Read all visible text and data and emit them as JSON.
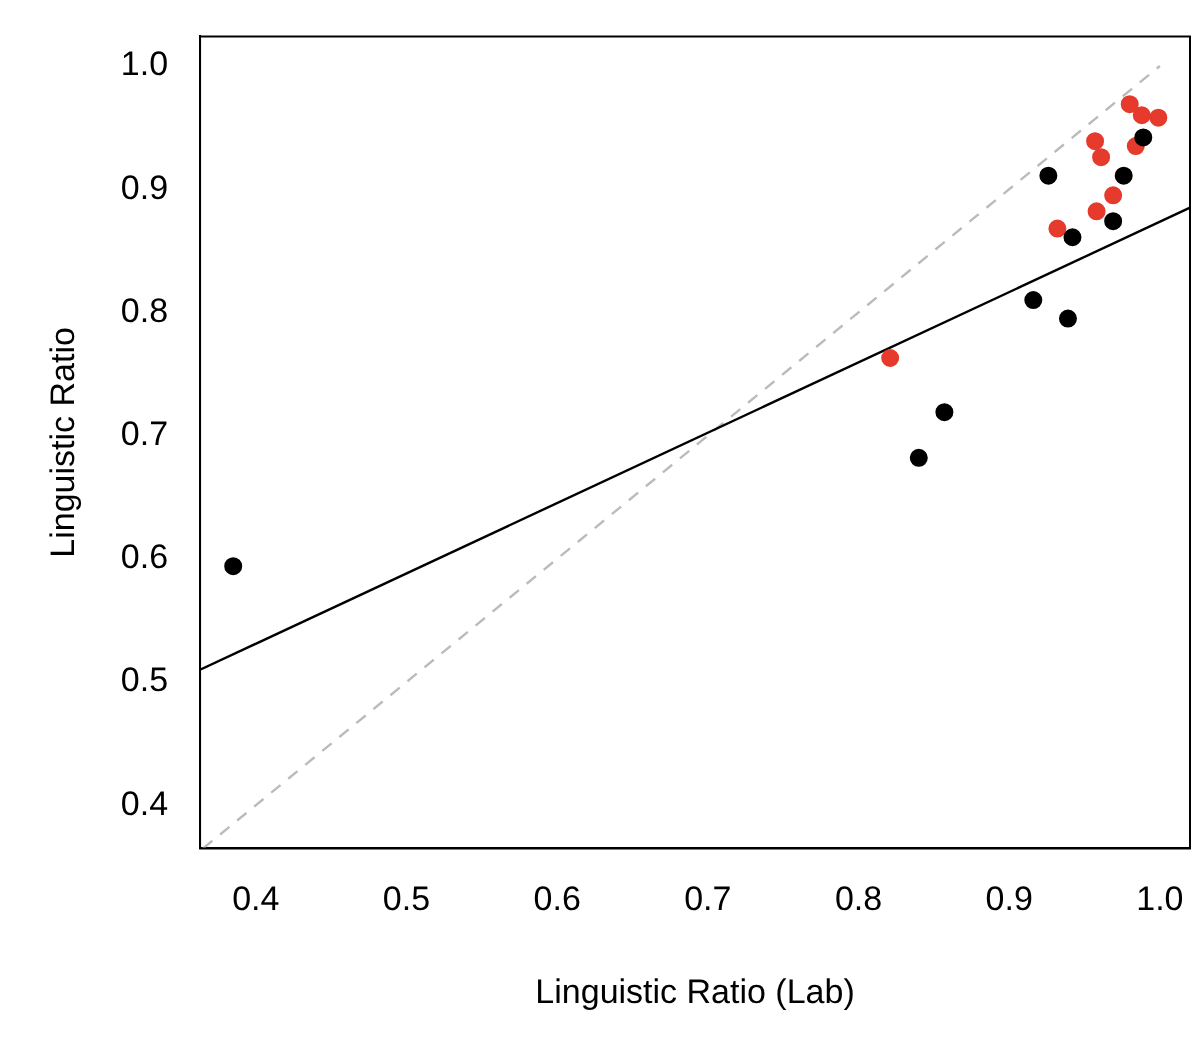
{
  "chart_data": {
    "type": "scatter",
    "xlabel": "Linguistic Ratio (Lab)",
    "ylabel": "Linguistic Ratio",
    "xlim": [
      0.363,
      1.02
    ],
    "ylim": [
      0.365,
      1.024
    ],
    "xticks": [
      0.4,
      0.5,
      0.6,
      0.7,
      0.8,
      0.9,
      {
        "value": 1.0,
        "label": "1.0"
      }
    ],
    "yticks": [
      0.4,
      0.5,
      0.6,
      0.7,
      0.8,
      0.9,
      {
        "value": 1.0,
        "label": "1.0"
      }
    ],
    "grid": false,
    "legend": false,
    "marker": "circle",
    "series": [
      {
        "type": "scatter",
        "color": "#000000",
        "x": [
          0.385,
          0.916,
          0.939,
          0.857,
          0.84,
          0.926,
          0.989,
          0.976,
          0.942,
          0.969
        ],
        "values": [
          0.594,
          0.81,
          0.795,
          0.719,
          0.682,
          0.911,
          0.942,
          0.911,
          0.861,
          0.874
        ]
      },
      {
        "type": "scatter",
        "color": "#e53a2c",
        "x": [
          0.821,
          0.98,
          0.988,
          0.999,
          0.957,
          0.961,
          0.984,
          0.969,
          0.958,
          0.932
        ],
        "values": [
          0.763,
          0.969,
          0.96,
          0.958,
          0.939,
          0.926,
          0.935,
          0.895,
          0.882,
          0.868
        ]
      },
      {
        "type": "line",
        "color": "#000000",
        "line_style": "solid",
        "marker": "none",
        "x": [
          0.363,
          1.02
        ],
        "values": [
          0.51,
          0.885
        ]
      },
      {
        "type": "line",
        "color": "#bbbbbb",
        "line_style": "dashed",
        "marker": "none",
        "x": [
          0.365,
          1.0
        ],
        "values": [
          0.365,
          1.0
        ]
      }
    ]
  }
}
